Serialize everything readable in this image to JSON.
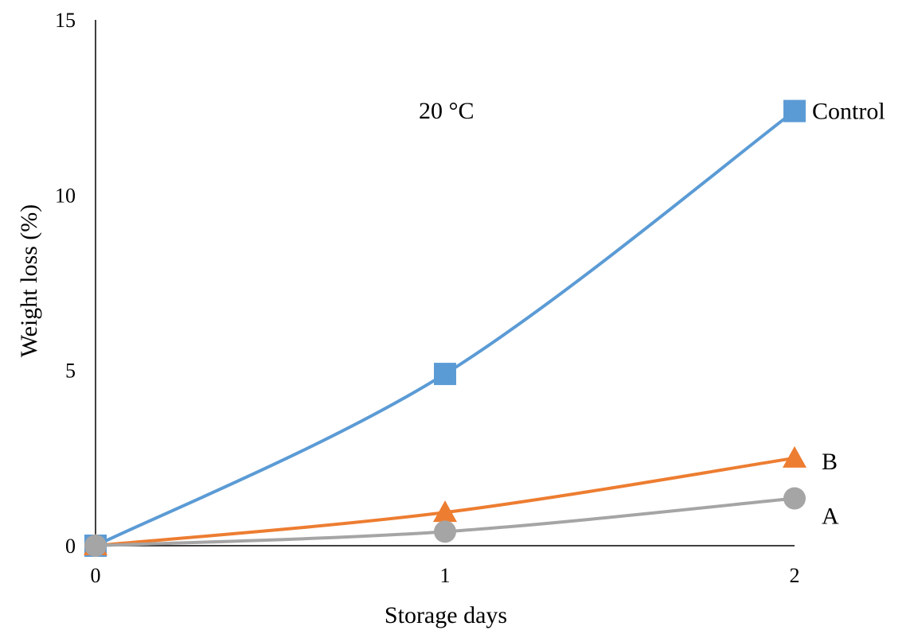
{
  "chart_data": {
    "type": "line",
    "title": "",
    "annotation": "20 °C",
    "xlabel": "Storage days",
    "ylabel": "Weight loss (%)",
    "x": [
      0,
      1,
      2
    ],
    "x_tick_labels": [
      "0",
      "1",
      "2"
    ],
    "xlim": [
      0,
      2
    ],
    "ylim": [
      0,
      15
    ],
    "y_ticks": [
      0,
      5,
      10,
      15
    ],
    "y_tick_labels": [
      "0",
      "5",
      "10",
      "15"
    ],
    "grid": false,
    "legend": "inline labels at line ends",
    "series": [
      {
        "name": "Control",
        "values": [
          0,
          4.9,
          12.4
        ],
        "color": "#5B9BD5",
        "marker": "square"
      },
      {
        "name": "B",
        "values": [
          0,
          0.95,
          2.5
        ],
        "color": "#ED7D31",
        "marker": "triangle"
      },
      {
        "name": "A",
        "values": [
          0,
          0.4,
          1.35
        ],
        "color": "#A5A5A5",
        "marker": "circle"
      }
    ]
  }
}
